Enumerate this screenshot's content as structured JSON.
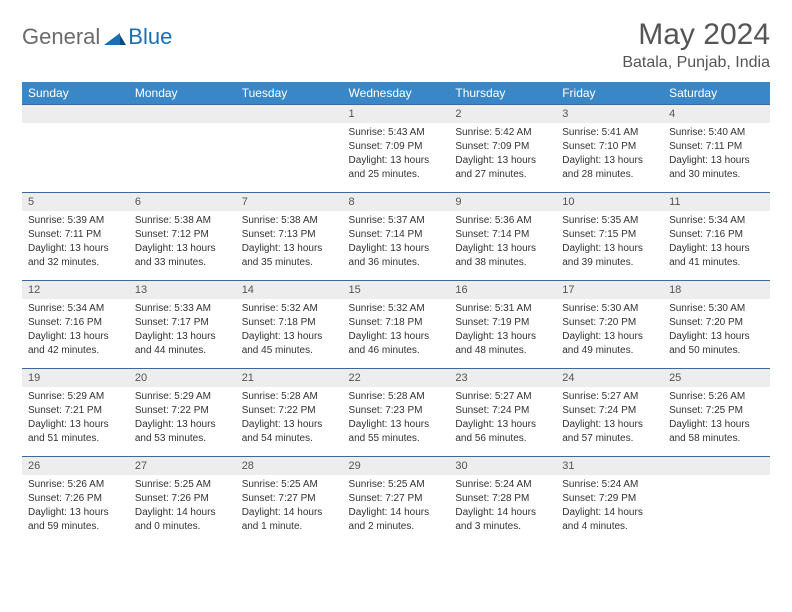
{
  "logo": {
    "part1": "General",
    "part2": "Blue"
  },
  "title": "May 2024",
  "location": "Batala, Punjab, India",
  "colors": {
    "header_bg": "#3a87c7",
    "header_text": "#ffffff",
    "daynum_bg": "#ededed",
    "border": "#3a6a9a",
    "logo_gray": "#6b6b6b",
    "logo_blue": "#1a6fb3"
  },
  "weekdays": [
    "Sunday",
    "Monday",
    "Tuesday",
    "Wednesday",
    "Thursday",
    "Friday",
    "Saturday"
  ],
  "weeks": [
    [
      {
        "day": null
      },
      {
        "day": null
      },
      {
        "day": null
      },
      {
        "day": 1,
        "sunrise": "Sunrise: 5:43 AM",
        "sunset": "Sunset: 7:09 PM",
        "daylight1": "Daylight: 13 hours",
        "daylight2": "and 25 minutes."
      },
      {
        "day": 2,
        "sunrise": "Sunrise: 5:42 AM",
        "sunset": "Sunset: 7:09 PM",
        "daylight1": "Daylight: 13 hours",
        "daylight2": "and 27 minutes."
      },
      {
        "day": 3,
        "sunrise": "Sunrise: 5:41 AM",
        "sunset": "Sunset: 7:10 PM",
        "daylight1": "Daylight: 13 hours",
        "daylight2": "and 28 minutes."
      },
      {
        "day": 4,
        "sunrise": "Sunrise: 5:40 AM",
        "sunset": "Sunset: 7:11 PM",
        "daylight1": "Daylight: 13 hours",
        "daylight2": "and 30 minutes."
      }
    ],
    [
      {
        "day": 5,
        "sunrise": "Sunrise: 5:39 AM",
        "sunset": "Sunset: 7:11 PM",
        "daylight1": "Daylight: 13 hours",
        "daylight2": "and 32 minutes."
      },
      {
        "day": 6,
        "sunrise": "Sunrise: 5:38 AM",
        "sunset": "Sunset: 7:12 PM",
        "daylight1": "Daylight: 13 hours",
        "daylight2": "and 33 minutes."
      },
      {
        "day": 7,
        "sunrise": "Sunrise: 5:38 AM",
        "sunset": "Sunset: 7:13 PM",
        "daylight1": "Daylight: 13 hours",
        "daylight2": "and 35 minutes."
      },
      {
        "day": 8,
        "sunrise": "Sunrise: 5:37 AM",
        "sunset": "Sunset: 7:14 PM",
        "daylight1": "Daylight: 13 hours",
        "daylight2": "and 36 minutes."
      },
      {
        "day": 9,
        "sunrise": "Sunrise: 5:36 AM",
        "sunset": "Sunset: 7:14 PM",
        "daylight1": "Daylight: 13 hours",
        "daylight2": "and 38 minutes."
      },
      {
        "day": 10,
        "sunrise": "Sunrise: 5:35 AM",
        "sunset": "Sunset: 7:15 PM",
        "daylight1": "Daylight: 13 hours",
        "daylight2": "and 39 minutes."
      },
      {
        "day": 11,
        "sunrise": "Sunrise: 5:34 AM",
        "sunset": "Sunset: 7:16 PM",
        "daylight1": "Daylight: 13 hours",
        "daylight2": "and 41 minutes."
      }
    ],
    [
      {
        "day": 12,
        "sunrise": "Sunrise: 5:34 AM",
        "sunset": "Sunset: 7:16 PM",
        "daylight1": "Daylight: 13 hours",
        "daylight2": "and 42 minutes."
      },
      {
        "day": 13,
        "sunrise": "Sunrise: 5:33 AM",
        "sunset": "Sunset: 7:17 PM",
        "daylight1": "Daylight: 13 hours",
        "daylight2": "and 44 minutes."
      },
      {
        "day": 14,
        "sunrise": "Sunrise: 5:32 AM",
        "sunset": "Sunset: 7:18 PM",
        "daylight1": "Daylight: 13 hours",
        "daylight2": "and 45 minutes."
      },
      {
        "day": 15,
        "sunrise": "Sunrise: 5:32 AM",
        "sunset": "Sunset: 7:18 PM",
        "daylight1": "Daylight: 13 hours",
        "daylight2": "and 46 minutes."
      },
      {
        "day": 16,
        "sunrise": "Sunrise: 5:31 AM",
        "sunset": "Sunset: 7:19 PM",
        "daylight1": "Daylight: 13 hours",
        "daylight2": "and 48 minutes."
      },
      {
        "day": 17,
        "sunrise": "Sunrise: 5:30 AM",
        "sunset": "Sunset: 7:20 PM",
        "daylight1": "Daylight: 13 hours",
        "daylight2": "and 49 minutes."
      },
      {
        "day": 18,
        "sunrise": "Sunrise: 5:30 AM",
        "sunset": "Sunset: 7:20 PM",
        "daylight1": "Daylight: 13 hours",
        "daylight2": "and 50 minutes."
      }
    ],
    [
      {
        "day": 19,
        "sunrise": "Sunrise: 5:29 AM",
        "sunset": "Sunset: 7:21 PM",
        "daylight1": "Daylight: 13 hours",
        "daylight2": "and 51 minutes."
      },
      {
        "day": 20,
        "sunrise": "Sunrise: 5:29 AM",
        "sunset": "Sunset: 7:22 PM",
        "daylight1": "Daylight: 13 hours",
        "daylight2": "and 53 minutes."
      },
      {
        "day": 21,
        "sunrise": "Sunrise: 5:28 AM",
        "sunset": "Sunset: 7:22 PM",
        "daylight1": "Daylight: 13 hours",
        "daylight2": "and 54 minutes."
      },
      {
        "day": 22,
        "sunrise": "Sunrise: 5:28 AM",
        "sunset": "Sunset: 7:23 PM",
        "daylight1": "Daylight: 13 hours",
        "daylight2": "and 55 minutes."
      },
      {
        "day": 23,
        "sunrise": "Sunrise: 5:27 AM",
        "sunset": "Sunset: 7:24 PM",
        "daylight1": "Daylight: 13 hours",
        "daylight2": "and 56 minutes."
      },
      {
        "day": 24,
        "sunrise": "Sunrise: 5:27 AM",
        "sunset": "Sunset: 7:24 PM",
        "daylight1": "Daylight: 13 hours",
        "daylight2": "and 57 minutes."
      },
      {
        "day": 25,
        "sunrise": "Sunrise: 5:26 AM",
        "sunset": "Sunset: 7:25 PM",
        "daylight1": "Daylight: 13 hours",
        "daylight2": "and 58 minutes."
      }
    ],
    [
      {
        "day": 26,
        "sunrise": "Sunrise: 5:26 AM",
        "sunset": "Sunset: 7:26 PM",
        "daylight1": "Daylight: 13 hours",
        "daylight2": "and 59 minutes."
      },
      {
        "day": 27,
        "sunrise": "Sunrise: 5:25 AM",
        "sunset": "Sunset: 7:26 PM",
        "daylight1": "Daylight: 14 hours",
        "daylight2": "and 0 minutes."
      },
      {
        "day": 28,
        "sunrise": "Sunrise: 5:25 AM",
        "sunset": "Sunset: 7:27 PM",
        "daylight1": "Daylight: 14 hours",
        "daylight2": "and 1 minute."
      },
      {
        "day": 29,
        "sunrise": "Sunrise: 5:25 AM",
        "sunset": "Sunset: 7:27 PM",
        "daylight1": "Daylight: 14 hours",
        "daylight2": "and 2 minutes."
      },
      {
        "day": 30,
        "sunrise": "Sunrise: 5:24 AM",
        "sunset": "Sunset: 7:28 PM",
        "daylight1": "Daylight: 14 hours",
        "daylight2": "and 3 minutes."
      },
      {
        "day": 31,
        "sunrise": "Sunrise: 5:24 AM",
        "sunset": "Sunset: 7:29 PM",
        "daylight1": "Daylight: 14 hours",
        "daylight2": "and 4 minutes."
      },
      {
        "day": null
      }
    ]
  ]
}
